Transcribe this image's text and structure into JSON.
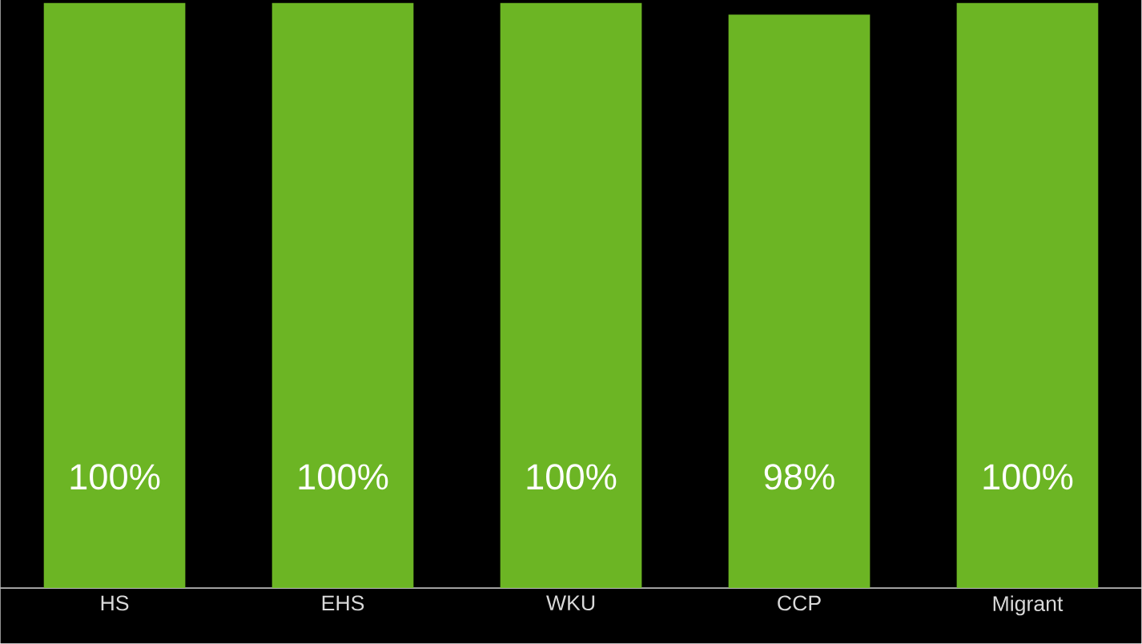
{
  "chart_data": {
    "type": "bar",
    "categories": [
      "HS",
      "EHS",
      "WKU",
      "CCP",
      "Migrant"
    ],
    "values": [
      100,
      100,
      100,
      98,
      100
    ],
    "value_labels": [
      "100%",
      "100%",
      "100%",
      "98%",
      "100%"
    ],
    "color": "#6cb524"
  }
}
